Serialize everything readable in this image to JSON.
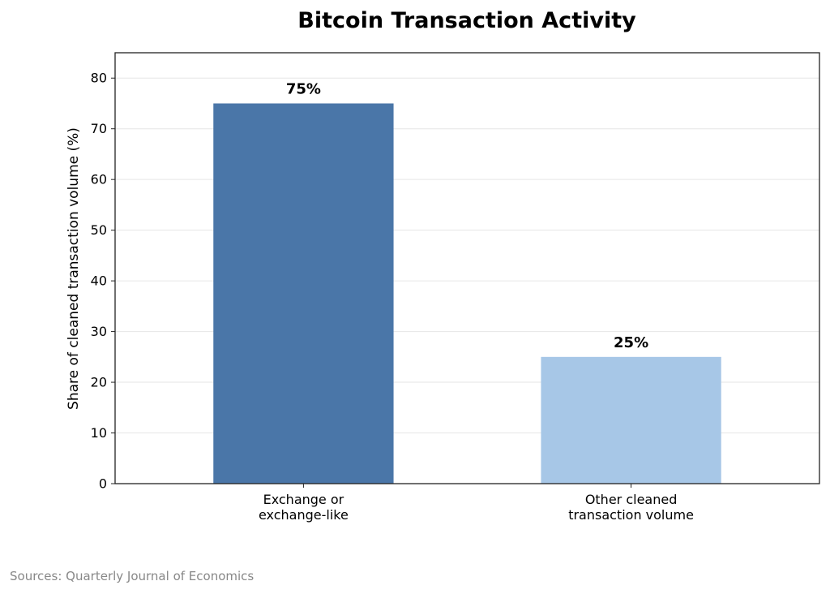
{
  "chart_data": {
    "type": "bar",
    "title": "Bitcoin Transaction Activity",
    "ylabel": "Share of cleaned transaction volume (%)",
    "xlabel": "",
    "ylim": [
      0,
      85
    ],
    "yticks": [
      0,
      10,
      20,
      30,
      40,
      50,
      60,
      70,
      80
    ],
    "grid": true,
    "categories": [
      [
        "Exchange or",
        "exchange-like"
      ],
      [
        "Other cleaned",
        "transaction volume"
      ]
    ],
    "values": [
      75,
      25
    ],
    "data_labels": [
      "75%",
      "25%"
    ],
    "colors": [
      "#4a76a8",
      "#a7c7e7"
    ]
  },
  "footer": {
    "source": "Sources: Quarterly Journal of Economics"
  }
}
